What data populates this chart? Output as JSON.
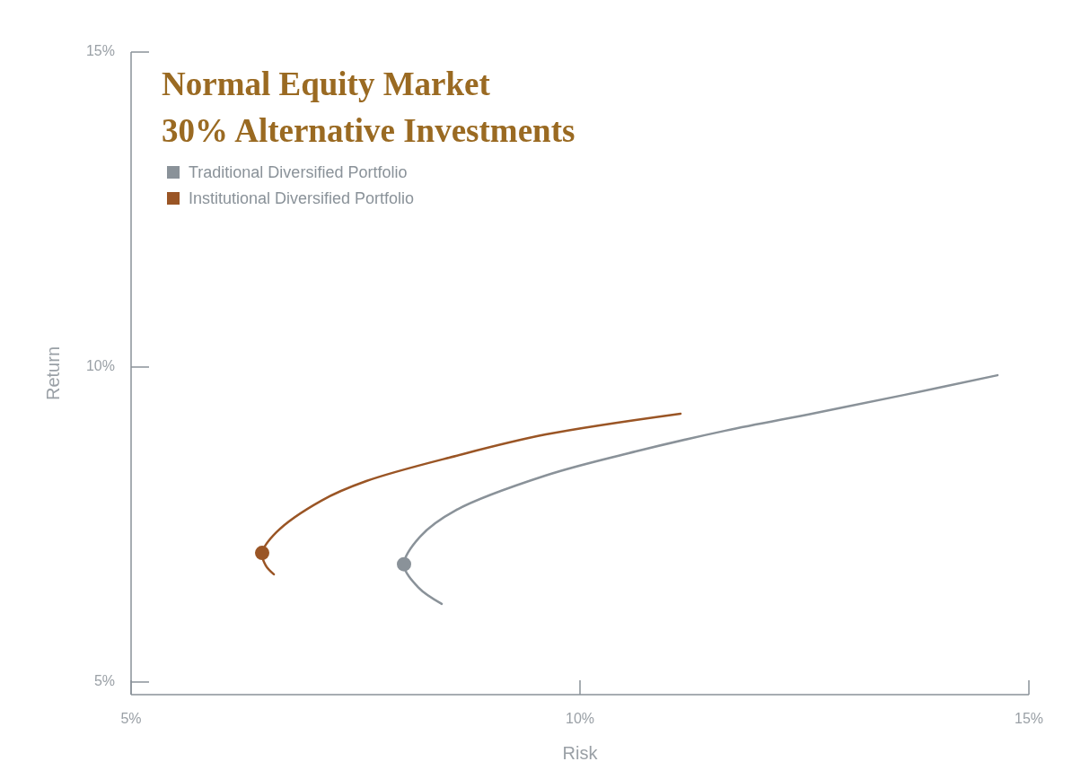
{
  "chart_data": {
    "type": "line",
    "title": "Normal Equity Market",
    "subtitle": "30% Alternative Investments",
    "xlabel": "Risk",
    "ylabel": "Return",
    "xlim": [
      5,
      15
    ],
    "xticks": [
      {
        "value": 5,
        "label": "5%"
      },
      {
        "value": 10,
        "label": "10%"
      },
      {
        "value": 15,
        "label": "15%"
      }
    ],
    "ylim": [
      4.8,
      15
    ],
    "yticks": [
      {
        "value": 5,
        "label": "5%"
      },
      {
        "value": 10,
        "label": "10%"
      },
      {
        "value": 15,
        "label": "15%"
      }
    ],
    "grid": false,
    "legend": "top left",
    "marker": "none",
    "line_style": "solid",
    "series": [
      {
        "name": "Traditional Diversified Portfolio",
        "color": "#8a9299",
        "x": [
          8.46,
          8.2,
          8.04,
          8.22,
          8.62,
          9.62,
          10.62,
          11.62,
          12.62,
          13.62,
          14.65
        ],
        "values": [
          6.24,
          6.5,
          6.87,
          7.31,
          7.73,
          8.28,
          8.66,
          8.99,
          9.27,
          9.56,
          9.87
        ]
      },
      {
        "name": "Institutional Diversified Portfolio",
        "color": "#9a5525",
        "x": [
          6.59,
          6.5,
          6.46,
          6.62,
          7.12,
          7.62,
          8.62,
          9.62,
          11.12
        ],
        "values": [
          6.71,
          6.85,
          7.05,
          7.38,
          7.88,
          8.19,
          8.59,
          8.93,
          9.26
        ]
      },
      {
        "type": "scatter",
        "marker": "circle",
        "color": "#8a9299",
        "x": [
          8.04
        ],
        "values": [
          6.87
        ]
      },
      {
        "type": "scatter",
        "marker": "circle",
        "color": "#9a5525",
        "x": [
          6.46
        ],
        "values": [
          7.05
        ]
      }
    ]
  }
}
